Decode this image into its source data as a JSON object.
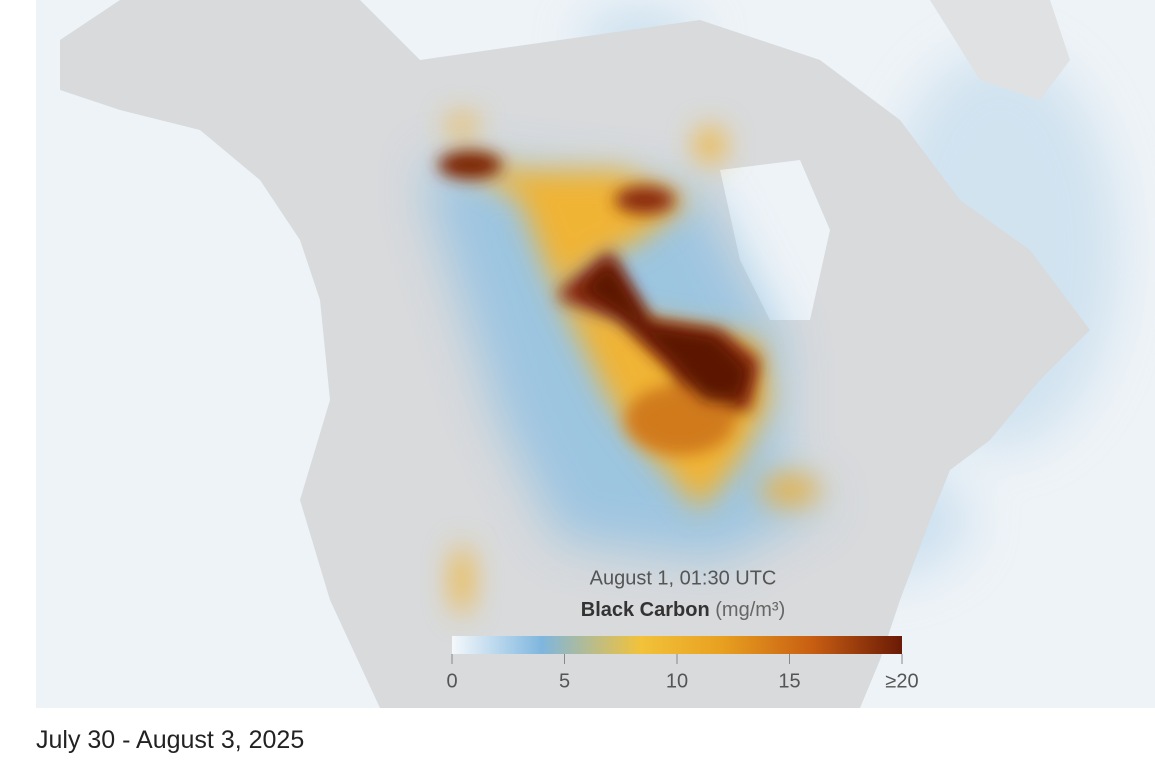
{
  "map": {
    "timestamp": "August 1, 01:30 UTC",
    "legend": {
      "title": "Black Carbon",
      "unit": "(mg/m³)",
      "range": [
        0,
        20
      ],
      "ticks": [
        0,
        5,
        10,
        15,
        {
          "value": 20,
          "label": "≥20"
        }
      ]
    }
  },
  "caption": "July 30 - August 3, 2025"
}
